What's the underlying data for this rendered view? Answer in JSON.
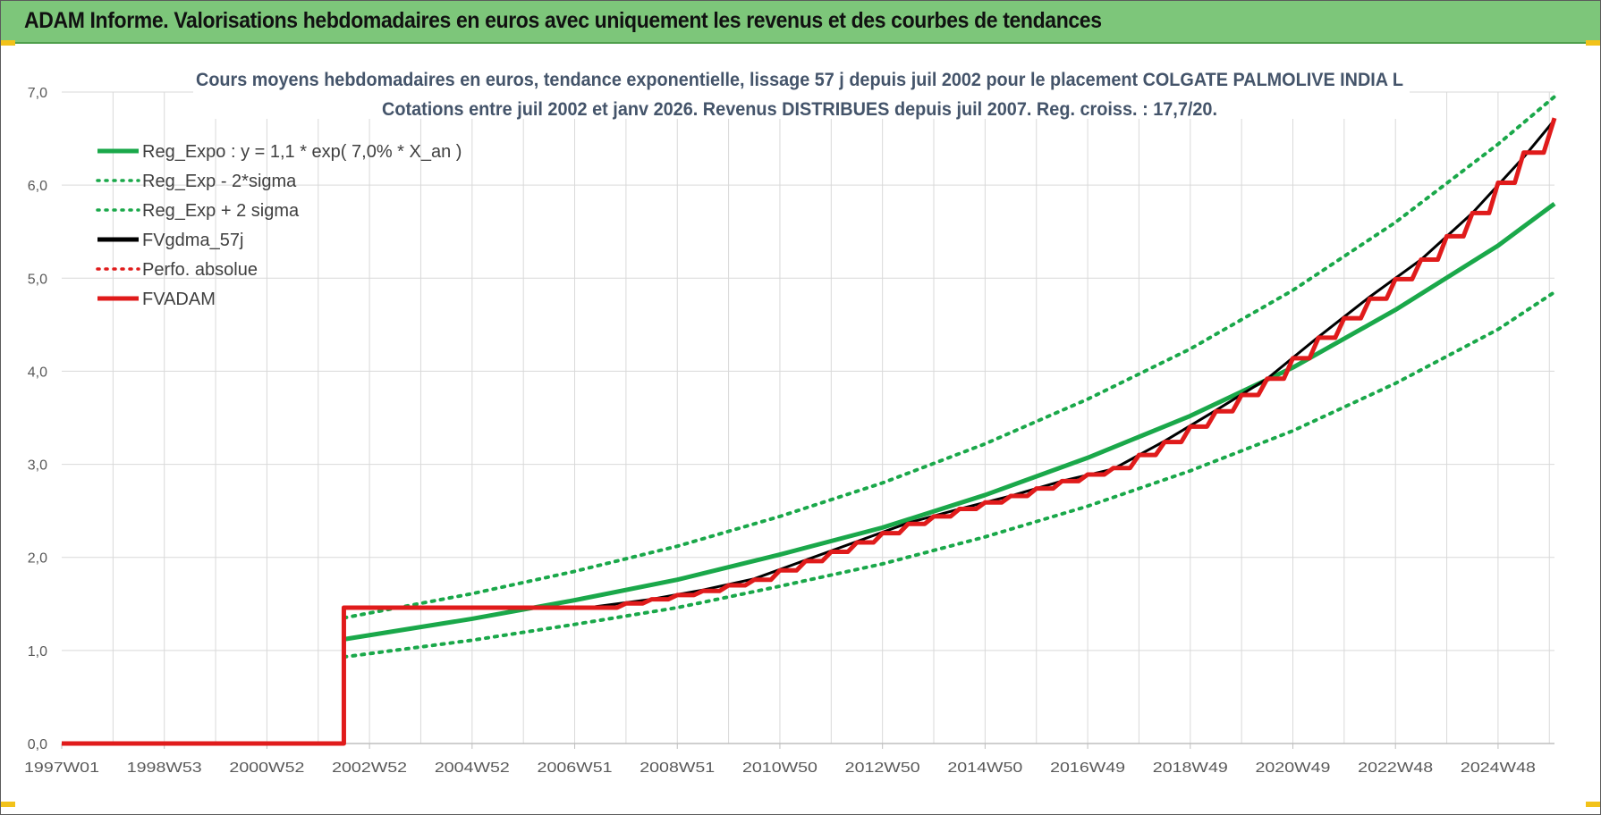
{
  "header": {
    "title": "ADAM Informe. Valorisations hebdomadaires en euros avec uniquement les revenus et des courbes de tendances"
  },
  "chart_data": {
    "type": "line",
    "title_lines": [
      "Cours moyens hebdomadaires en euros, tendance exponentielle, lissage 57 j depuis juil 2002 pour le placement COLGATE PALMOLIVE INDIA L",
      "Cotations entre juil 2002 et janv 2026. Revenus DISTRIBUES depuis juil 2007. Reg. croiss. : 17,7/20."
    ],
    "ylim": [
      0,
      7
    ],
    "yticks": [
      "0,0",
      "1,0",
      "2,0",
      "3,0",
      "4,0",
      "5,0",
      "6,0",
      "7,0"
    ],
    "x_start_year": 1997.0,
    "x_end_year": 2026.1,
    "xticks": [
      {
        "label": "1997W01",
        "year": 1997.0
      },
      {
        "label": "1998W53",
        "year": 1999.0
      },
      {
        "label": "2000W52",
        "year": 2001.0
      },
      {
        "label": "2002W52",
        "year": 2003.0
      },
      {
        "label": "2004W52",
        "year": 2005.0
      },
      {
        "label": "2006W51",
        "year": 2007.0
      },
      {
        "label": "2008W51",
        "year": 2009.0
      },
      {
        "label": "2010W50",
        "year": 2011.0
      },
      {
        "label": "2012W50",
        "year": 2013.0
      },
      {
        "label": "2014W50",
        "year": 2015.0
      },
      {
        "label": "2016W49",
        "year": 2017.0
      },
      {
        "label": "2018W49",
        "year": 2019.0
      },
      {
        "label": "2020W49",
        "year": 2021.0
      },
      {
        "label": "2022W48",
        "year": 2023.0
      },
      {
        "label": "2024W48",
        "year": 2025.0
      }
    ],
    "legend_position": "top-left",
    "series": [
      {
        "name": "Reg_Expo : y = 1,1 * exp( 7,0% *  X_an )",
        "color": "#1aa84a",
        "style": "solid",
        "width": 5,
        "points": [
          [
            2002.5,
            1.12
          ],
          [
            2005,
            1.34
          ],
          [
            2007,
            1.54
          ],
          [
            2009,
            1.76
          ],
          [
            2011,
            2.03
          ],
          [
            2013,
            2.32
          ],
          [
            2015,
            2.67
          ],
          [
            2017,
            3.07
          ],
          [
            2019,
            3.52
          ],
          [
            2021,
            4.04
          ],
          [
            2023,
            4.66
          ],
          [
            2025,
            5.35
          ],
          [
            2026.1,
            5.8
          ]
        ]
      },
      {
        "name": "Reg_Exp - 2*sigma",
        "color": "#1aa84a",
        "style": "dotted",
        "width": 4,
        "points": [
          [
            2002.5,
            0.93
          ],
          [
            2005,
            1.11
          ],
          [
            2007,
            1.28
          ],
          [
            2009,
            1.46
          ],
          [
            2011,
            1.69
          ],
          [
            2013,
            1.93
          ],
          [
            2015,
            2.22
          ],
          [
            2017,
            2.55
          ],
          [
            2019,
            2.93
          ],
          [
            2021,
            3.36
          ],
          [
            2023,
            3.87
          ],
          [
            2025,
            4.45
          ],
          [
            2026.1,
            4.85
          ]
        ]
      },
      {
        "name": "Reg_Exp + 2 sigma",
        "color": "#1aa84a",
        "style": "dotted",
        "width": 4,
        "points": [
          [
            2002.5,
            1.35
          ],
          [
            2005,
            1.61
          ],
          [
            2007,
            1.85
          ],
          [
            2009,
            2.12
          ],
          [
            2011,
            2.44
          ],
          [
            2013,
            2.8
          ],
          [
            2015,
            3.22
          ],
          [
            2017,
            3.7
          ],
          [
            2019,
            4.24
          ],
          [
            2021,
            4.87
          ],
          [
            2023,
            5.6
          ],
          [
            2025,
            6.44
          ],
          [
            2026.1,
            6.95
          ]
        ]
      },
      {
        "name": "FVgdma_57j",
        "color": "#000000",
        "style": "solid",
        "width": 3,
        "points": [
          [
            2007.4,
            1.47
          ],
          [
            2008.5,
            1.55
          ],
          [
            2009.5,
            1.65
          ],
          [
            2010.5,
            1.77
          ],
          [
            2011.5,
            1.97
          ],
          [
            2012.5,
            2.17
          ],
          [
            2013.5,
            2.37
          ],
          [
            2014.5,
            2.52
          ],
          [
            2015.5,
            2.66
          ],
          [
            2016.5,
            2.82
          ],
          [
            2017.5,
            2.95
          ],
          [
            2018.5,
            3.25
          ],
          [
            2019.5,
            3.58
          ],
          [
            2020.5,
            3.92
          ],
          [
            2021.5,
            4.37
          ],
          [
            2022.5,
            4.8
          ],
          [
            2023.5,
            5.2
          ],
          [
            2024.5,
            5.7
          ],
          [
            2025.5,
            6.3
          ],
          [
            2026.1,
            6.7
          ]
        ]
      },
      {
        "name": "Perfo. absolue",
        "color": "#e01b1b",
        "style": "dotted",
        "width": 3,
        "points": []
      },
      {
        "name": "FVADAM",
        "color": "#e01b1b",
        "style": "solid",
        "width": 5,
        "points": [
          [
            1997.0,
            0.0
          ],
          [
            2002.5,
            0.0
          ],
          [
            2002.5,
            1.46
          ],
          [
            2007.5,
            1.46
          ],
          [
            2008.5,
            1.55
          ],
          [
            2009.5,
            1.64
          ],
          [
            2010.5,
            1.76
          ],
          [
            2011.5,
            1.96
          ],
          [
            2012.5,
            2.16
          ],
          [
            2013.5,
            2.36
          ],
          [
            2014.5,
            2.52
          ],
          [
            2015.5,
            2.66
          ],
          [
            2016.5,
            2.82
          ],
          [
            2017.5,
            2.96
          ],
          [
            2018.5,
            3.24
          ],
          [
            2019.5,
            3.57
          ],
          [
            2020.5,
            3.92
          ],
          [
            2021.5,
            4.36
          ],
          [
            2022.5,
            4.78
          ],
          [
            2023.5,
            5.2
          ],
          [
            2024.5,
            5.7
          ],
          [
            2025.5,
            6.35
          ],
          [
            2026.1,
            6.72
          ]
        ]
      }
    ],
    "colors": {
      "grid": "#d9d9d9",
      "axis_text": "#595959",
      "title_text": "#44546a"
    }
  }
}
